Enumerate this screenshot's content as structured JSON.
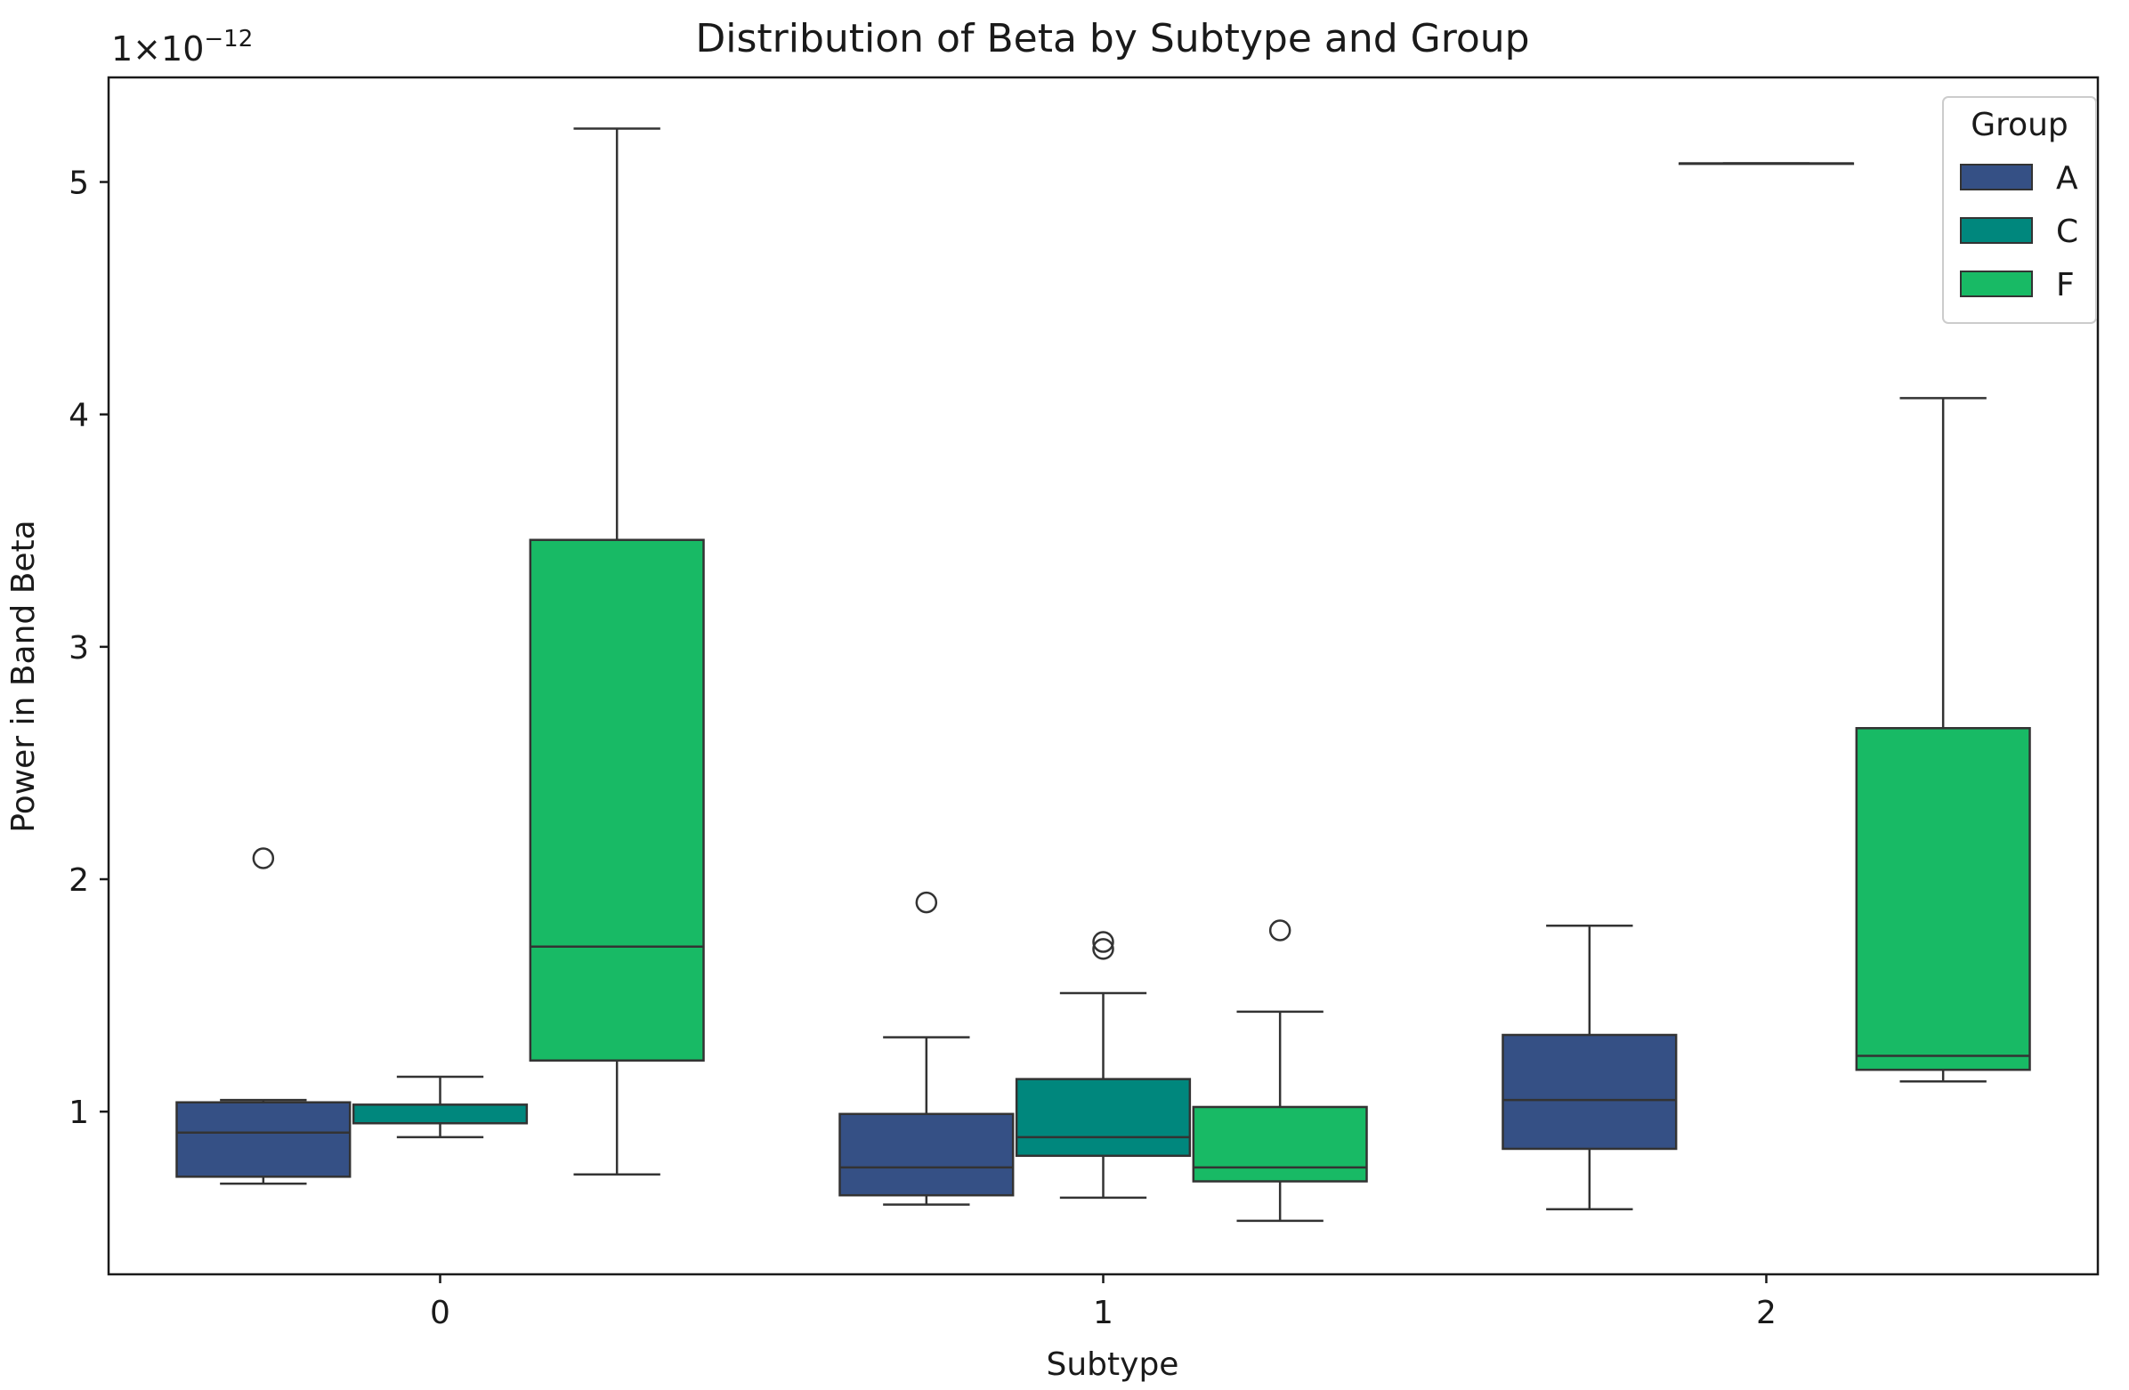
{
  "chart_data": {
    "type": "boxplot",
    "title": "Distribution of Beta by Subtype and Group",
    "xlabel": "Subtype",
    "ylabel": "Power in Band Beta",
    "offset_label": {
      "base": "1×10",
      "exponent": "−12"
    },
    "categories": [
      "0",
      "1",
      "2"
    ],
    "y_ticks": [
      1,
      2,
      3,
      4,
      5
    ],
    "ylim": [
      0.3,
      5.45
    ],
    "legend": {
      "title": "Group",
      "position": "top-right"
    },
    "series": [
      {
        "name": "A",
        "color": "#355085",
        "boxes": [
          {
            "category": "0",
            "whislo": 0.69,
            "q1": 0.72,
            "med": 0.91,
            "q3": 1.04,
            "whishi": 1.05,
            "fliers": [
              2.09
            ]
          },
          {
            "category": "1",
            "whislo": 0.6,
            "q1": 0.64,
            "med": 0.76,
            "q3": 0.99,
            "whishi": 1.32,
            "fliers": [
              1.9
            ]
          },
          {
            "category": "2",
            "whislo": 0.58,
            "q1": 0.84,
            "med": 1.05,
            "q3": 1.33,
            "whishi": 1.8,
            "fliers": []
          }
        ]
      },
      {
        "name": "C",
        "color": "#00877d",
        "boxes": [
          {
            "category": "0",
            "whislo": 0.89,
            "q1": 0.95,
            "med": 0.95,
            "q3": 1.03,
            "whishi": 1.15,
            "fliers": []
          },
          {
            "category": "1",
            "whislo": 0.63,
            "q1": 0.81,
            "med": 0.89,
            "q3": 1.14,
            "whishi": 1.51,
            "fliers": [
              1.7,
              1.73
            ]
          },
          {
            "category": "2",
            "whislo": 5.08,
            "q1": 5.08,
            "med": 5.08,
            "q3": 5.08,
            "whishi": 5.08,
            "fliers": []
          }
        ]
      },
      {
        "name": "F",
        "color": "#18ba65",
        "boxes": [
          {
            "category": "0",
            "whislo": 0.73,
            "q1": 1.22,
            "med": 1.71,
            "q3": 3.46,
            "whishi": 5.23,
            "fliers": []
          },
          {
            "category": "1",
            "whislo": 0.53,
            "q1": 0.7,
            "med": 0.76,
            "q3": 1.02,
            "whishi": 1.43,
            "fliers": [
              1.78
            ]
          },
          {
            "category": "2",
            "whislo": 1.13,
            "q1": 1.18,
            "med": 1.24,
            "q3": 2.65,
            "whishi": 4.07,
            "fliers": []
          }
        ]
      }
    ]
  }
}
